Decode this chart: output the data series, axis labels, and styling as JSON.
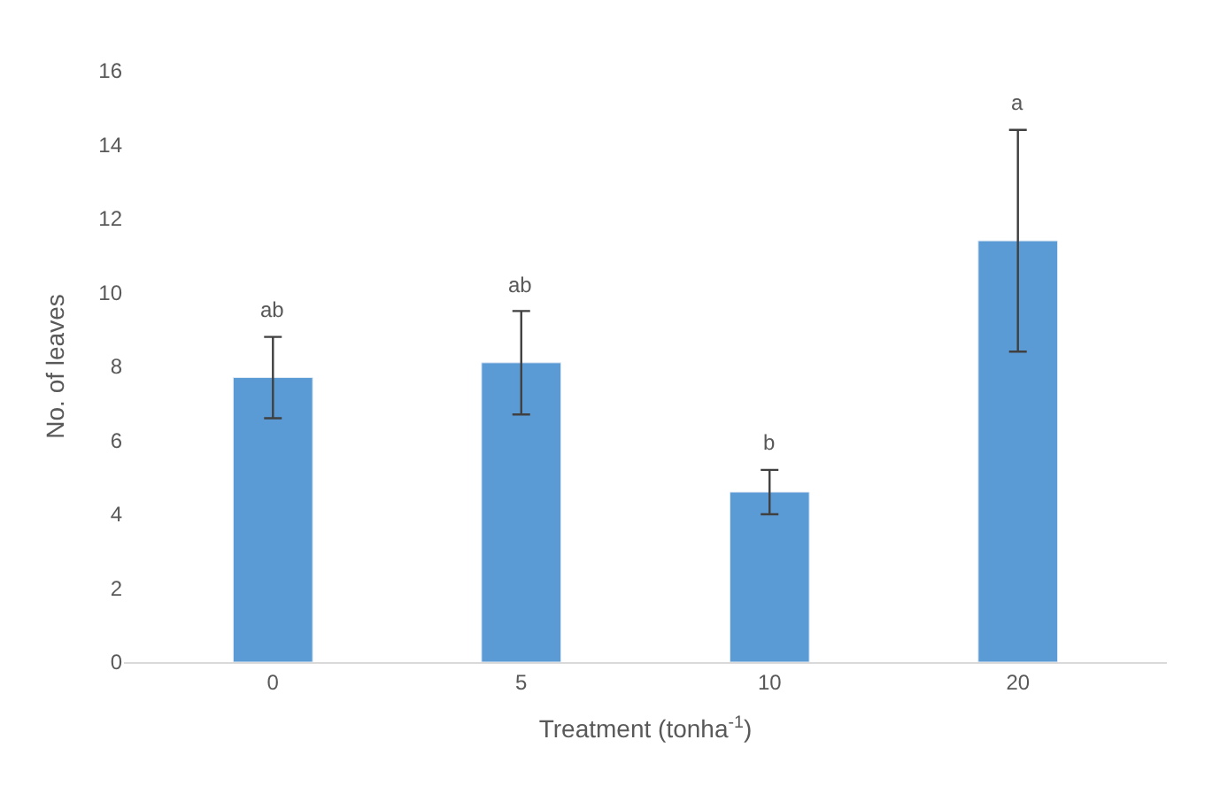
{
  "chart_data": {
    "type": "bar",
    "xlabel": "Treatment (tonha$^{-1}$)",
    "ylabel": "No. of leaves",
    "categories": [
      "0",
      "5",
      "10",
      "20"
    ],
    "values": [
      7.7,
      8.1,
      4.6,
      11.4
    ],
    "errors": [
      1.1,
      1.4,
      0.6,
      3.0
    ],
    "color": "#5b9bd5",
    "ylim": [
      0,
      16
    ],
    "yticks": [
      0,
      2,
      4,
      6,
      8,
      10,
      12,
      14,
      16
    ],
    "annotations": [
      {
        "text": "ab",
        "x": "0",
        "y": 8.8
      },
      {
        "text": "ab",
        "x": "5",
        "y": 9.5
      },
      {
        "text": "b",
        "x": "10",
        "y": 5.2
      },
      {
        "text": "a",
        "x": "20",
        "y": 14.4
      }
    ]
  }
}
